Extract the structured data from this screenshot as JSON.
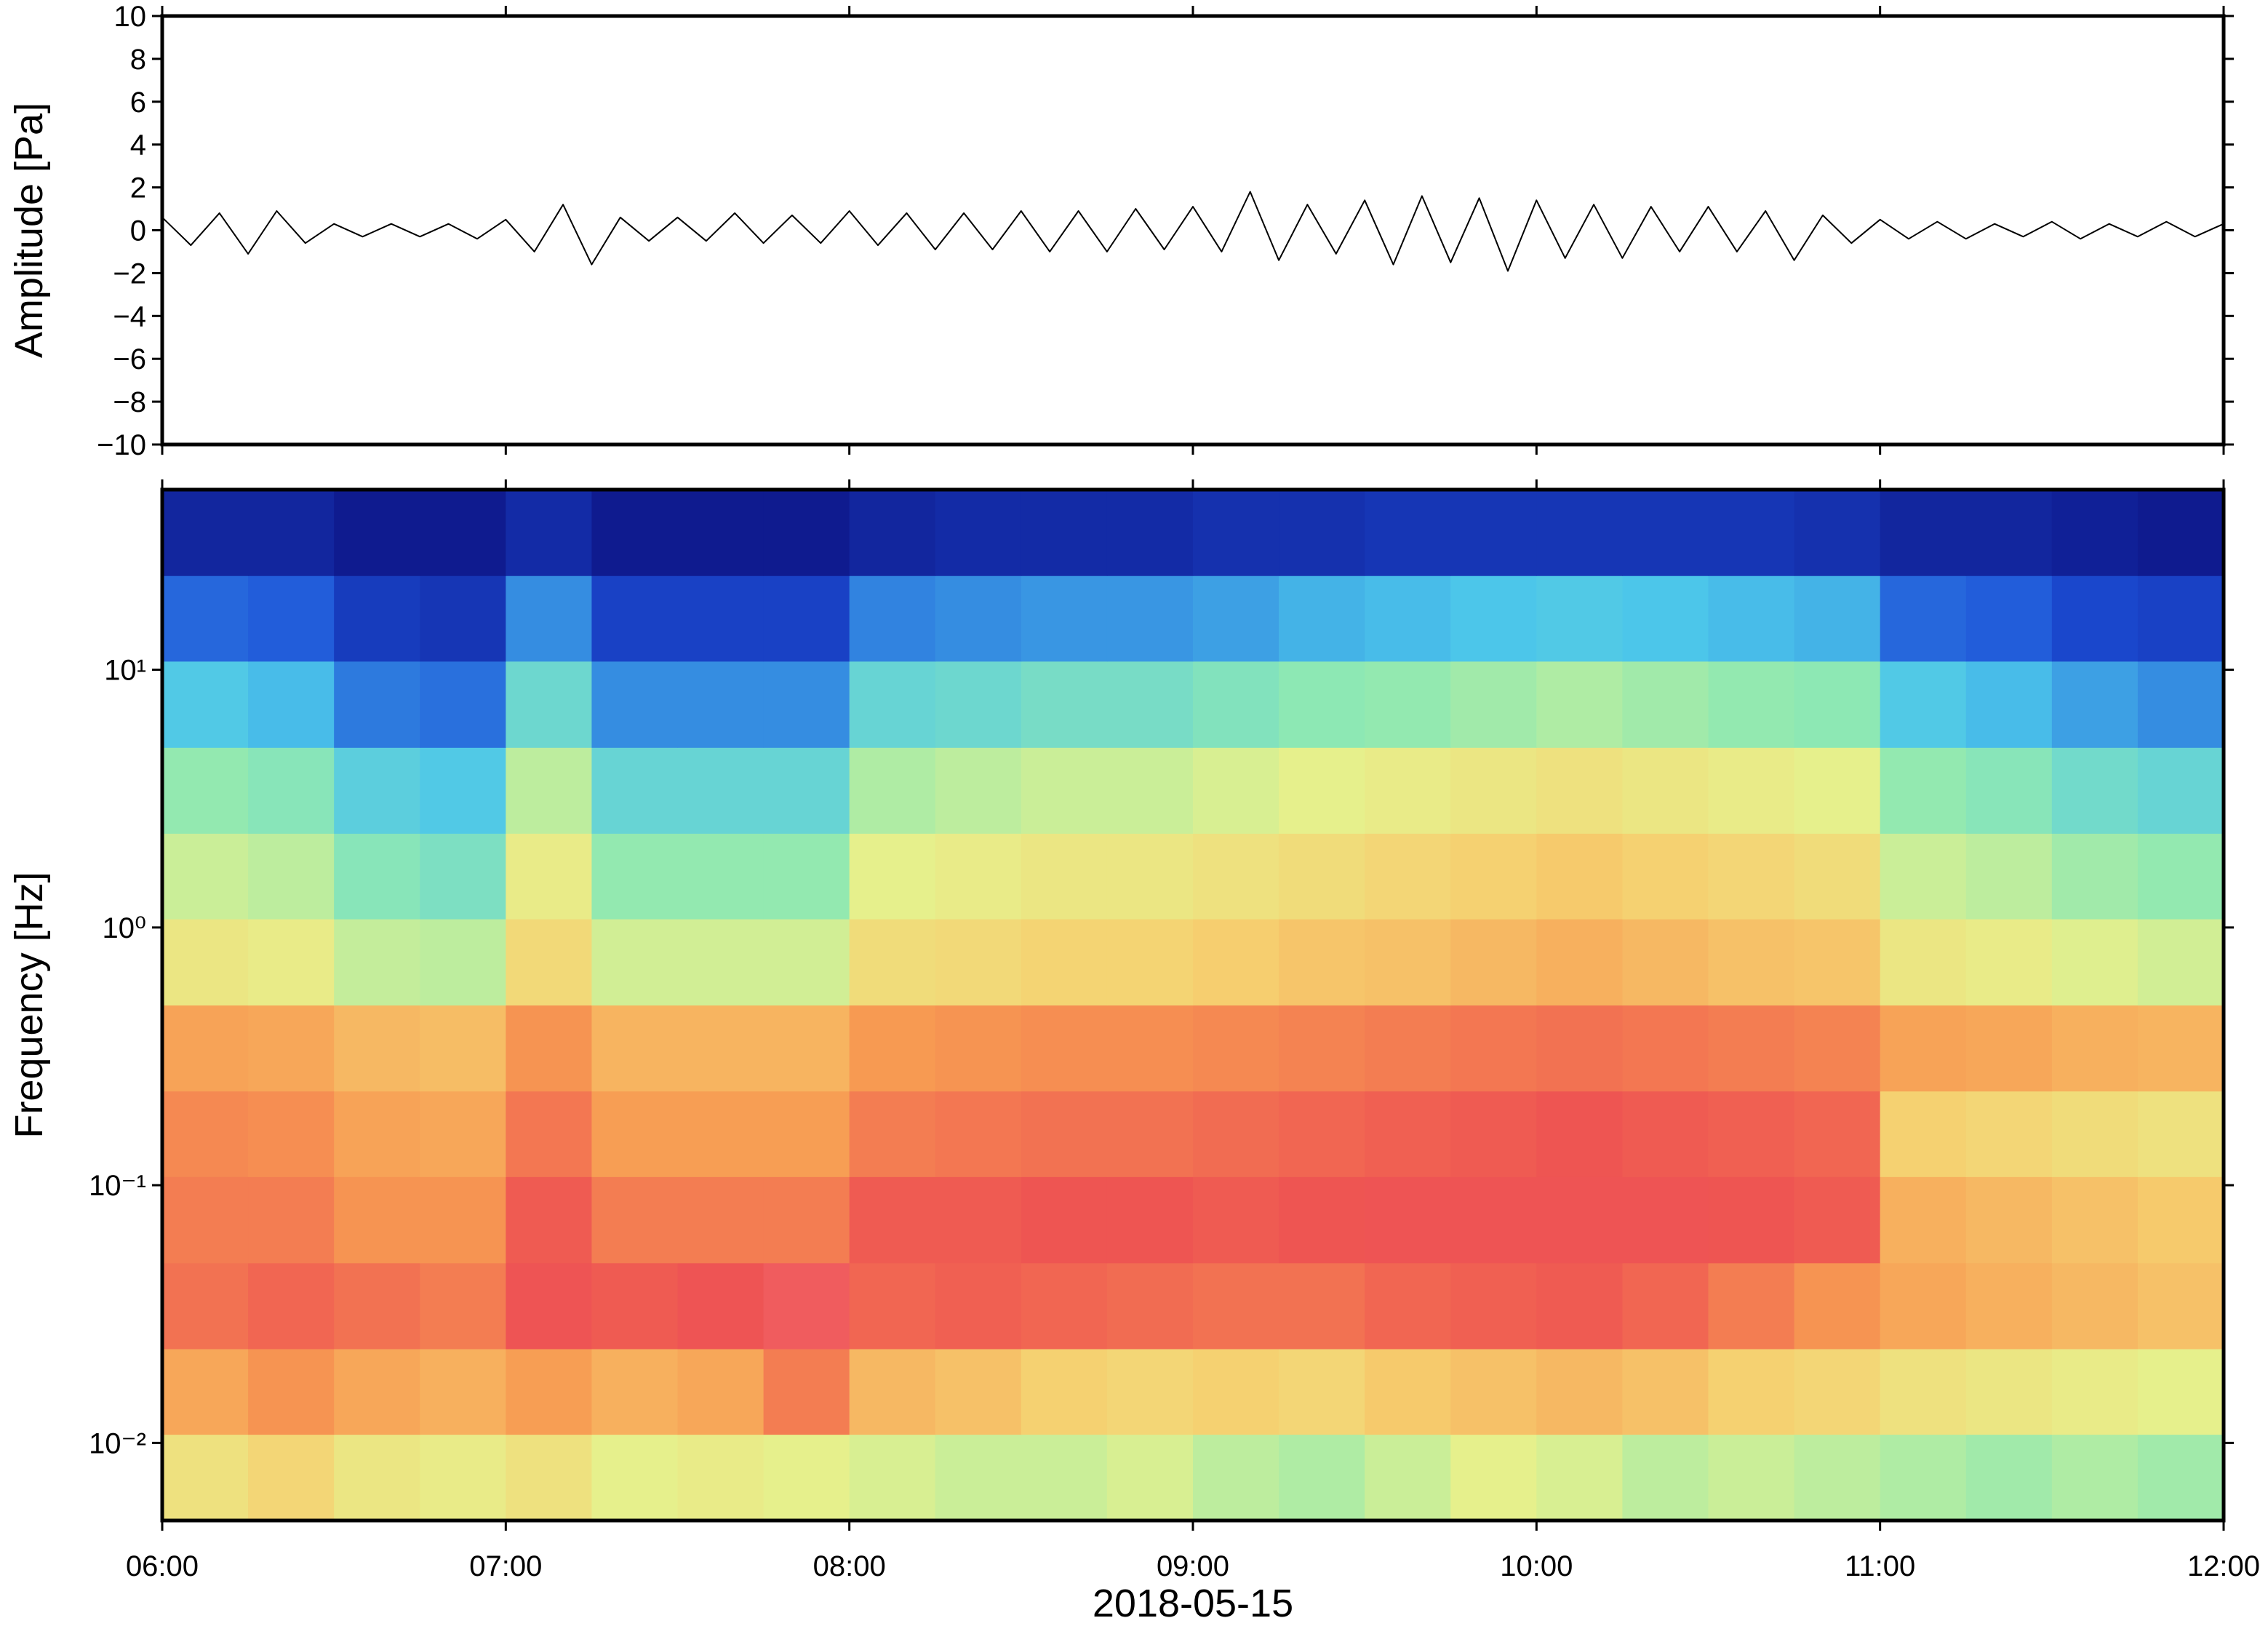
{
  "chart_data": [
    {
      "type": "line",
      "ylabel": "Amplitude [Pa]",
      "color": "#000000",
      "x": [
        "06:00",
        "06:05",
        "06:10",
        "06:15",
        "06:20",
        "06:25",
        "06:30",
        "06:35",
        "06:40",
        "06:45",
        "06:50",
        "06:55",
        "07:00",
        "07:05",
        "07:10",
        "07:15",
        "07:20",
        "07:25",
        "07:30",
        "07:35",
        "07:40",
        "07:45",
        "07:50",
        "07:55",
        "08:00",
        "08:05",
        "08:10",
        "08:15",
        "08:20",
        "08:25",
        "08:30",
        "08:35",
        "08:40",
        "08:45",
        "08:50",
        "08:55",
        "09:00",
        "09:05",
        "09:10",
        "09:15",
        "09:20",
        "09:25",
        "09:30",
        "09:35",
        "09:40",
        "09:45",
        "09:50",
        "09:55",
        "10:00",
        "10:05",
        "10:10",
        "10:15",
        "10:20",
        "10:25",
        "10:30",
        "10:35",
        "10:40",
        "10:45",
        "10:50",
        "10:55",
        "11:00",
        "11:05",
        "11:10",
        "11:15",
        "11:20",
        "11:25",
        "11:30",
        "11:35",
        "11:40",
        "11:45",
        "11:50",
        "11:55",
        "12:00"
      ],
      "values": [
        0.6,
        -0.7,
        0.8,
        -1.1,
        0.9,
        -0.6,
        0.3,
        -0.3,
        0.3,
        -0.3,
        0.3,
        -0.4,
        0.5,
        -1.0,
        1.2,
        -1.6,
        0.6,
        -0.5,
        0.6,
        -0.5,
        0.8,
        -0.6,
        0.7,
        -0.6,
        0.9,
        -0.7,
        0.8,
        -0.9,
        0.8,
        -0.9,
        0.9,
        -1.0,
        0.9,
        -1.0,
        1.0,
        -0.9,
        1.1,
        -1.0,
        1.8,
        -1.4,
        1.2,
        -1.1,
        1.4,
        -1.6,
        1.6,
        -1.5,
        1.5,
        -1.9,
        1.4,
        -1.3,
        1.2,
        -1.3,
        1.1,
        -1.0,
        1.1,
        -1.0,
        0.9,
        -1.4,
        0.7,
        -0.6,
        0.5,
        -0.4,
        0.4,
        -0.4,
        0.3,
        -0.3,
        0.4,
        -0.4,
        0.3,
        -0.3,
        0.4,
        -0.3,
        0.3
      ],
      "xlim": [
        "06:00",
        "12:00"
      ],
      "xticks": [
        "06:00",
        "07:00",
        "08:00",
        "09:00",
        "10:00",
        "11:00",
        "12:00"
      ],
      "ylim": [
        -10,
        10
      ],
      "yticks": [
        {
          "value": -10,
          "label": "−10"
        },
        {
          "value": -8,
          "label": "−8"
        },
        {
          "value": -6,
          "label": "−6"
        },
        {
          "value": -4,
          "label": "−4"
        },
        {
          "value": -2,
          "label": "−2"
        },
        0,
        2,
        4,
        6,
        8,
        10
      ]
    },
    {
      "type": "heatmap",
      "ylabel": "Frequency [Hz]",
      "xlabel": "2018-05-15",
      "yscale": "log",
      "colormap": [
        "#0b0a78",
        "#1c4fd8",
        "#4cc6ea",
        "#90e9b2",
        "#e6f08c",
        "#f6d070",
        "#f79a52",
        "#ee5252",
        "#f7838f"
      ],
      "clim": [
        0,
        1
      ],
      "x_bins": [
        "06:00",
        "06:15",
        "06:30",
        "06:45",
        "07:00",
        "07:15",
        "07:30",
        "07:45",
        "08:00",
        "08:15",
        "08:30",
        "08:45",
        "09:00",
        "09:15",
        "09:30",
        "09:45",
        "10:00",
        "10:15",
        "10:30",
        "10:45",
        "11:00",
        "11:15",
        "11:30",
        "11:45",
        "12:00"
      ],
      "y_bins": [
        0.005,
        0.0108,
        0.0232,
        0.05,
        0.108,
        0.232,
        0.5,
        1.08,
        2.32,
        5,
        10.8,
        23.2,
        50
      ],
      "z": [
        [
          0.56,
          0.6,
          0.54,
          0.52,
          0.56,
          0.5,
          0.52,
          0.5,
          0.48,
          0.46,
          0.46,
          0.48,
          0.44,
          0.42,
          0.46,
          0.5,
          0.48,
          0.44,
          0.46,
          0.44,
          0.42,
          0.4,
          0.42,
          0.4
        ],
        [
          0.72,
          0.76,
          0.72,
          0.7,
          0.74,
          0.7,
          0.72,
          0.8,
          0.68,
          0.66,
          0.62,
          0.6,
          0.62,
          0.6,
          0.64,
          0.66,
          0.68,
          0.66,
          0.62,
          0.6,
          0.56,
          0.54,
          0.52,
          0.5
        ],
        [
          0.82,
          0.84,
          0.82,
          0.8,
          0.88,
          0.86,
          0.88,
          0.9,
          0.84,
          0.85,
          0.84,
          0.83,
          0.82,
          0.82,
          0.84,
          0.85,
          0.86,
          0.84,
          0.8,
          0.76,
          0.72,
          0.7,
          0.68,
          0.66
        ],
        [
          0.8,
          0.8,
          0.76,
          0.76,
          0.86,
          0.8,
          0.8,
          0.8,
          0.86,
          0.86,
          0.87,
          0.87,
          0.86,
          0.87,
          0.88,
          0.88,
          0.88,
          0.88,
          0.87,
          0.86,
          0.7,
          0.68,
          0.66,
          0.64
        ],
        [
          0.78,
          0.77,
          0.73,
          0.72,
          0.81,
          0.74,
          0.74,
          0.74,
          0.8,
          0.81,
          0.82,
          0.82,
          0.83,
          0.84,
          0.85,
          0.86,
          0.87,
          0.86,
          0.85,
          0.84,
          0.62,
          0.6,
          0.58,
          0.56
        ],
        [
          0.73,
          0.72,
          0.68,
          0.67,
          0.76,
          0.69,
          0.69,
          0.69,
          0.75,
          0.76,
          0.77,
          0.77,
          0.78,
          0.79,
          0.8,
          0.81,
          0.82,
          0.81,
          0.8,
          0.79,
          0.73,
          0.72,
          0.7,
          0.69
        ],
        [
          0.54,
          0.52,
          0.45,
          0.44,
          0.59,
          0.47,
          0.47,
          0.47,
          0.58,
          0.59,
          0.61,
          0.61,
          0.63,
          0.65,
          0.66,
          0.68,
          0.7,
          0.68,
          0.66,
          0.65,
          0.54,
          0.52,
          0.49,
          0.47
        ],
        [
          0.46,
          0.44,
          0.36,
          0.34,
          0.52,
          0.38,
          0.38,
          0.38,
          0.5,
          0.52,
          0.54,
          0.54,
          0.56,
          0.58,
          0.6,
          0.62,
          0.64,
          0.62,
          0.6,
          0.58,
          0.46,
          0.44,
          0.4,
          0.38
        ],
        [
          0.38,
          0.36,
          0.28,
          0.26,
          0.44,
          0.3,
          0.3,
          0.3,
          0.42,
          0.44,
          0.46,
          0.46,
          0.48,
          0.5,
          0.52,
          0.54,
          0.56,
          0.54,
          0.52,
          0.5,
          0.38,
          0.36,
          0.32,
          0.3
        ],
        [
          0.26,
          0.24,
          0.17,
          0.16,
          0.31,
          0.19,
          0.19,
          0.19,
          0.3,
          0.31,
          0.33,
          0.33,
          0.35,
          0.37,
          0.38,
          0.4,
          0.42,
          0.4,
          0.38,
          0.37,
          0.26,
          0.24,
          0.21,
          0.19
        ],
        [
          0.15,
          0.14,
          0.09,
          0.08,
          0.19,
          0.1,
          0.1,
          0.1,
          0.18,
          0.19,
          0.2,
          0.2,
          0.21,
          0.23,
          0.24,
          0.25,
          0.26,
          0.25,
          0.24,
          0.23,
          0.15,
          0.14,
          0.11,
          0.1
        ],
        [
          0.05,
          0.05,
          0.03,
          0.03,
          0.06,
          0.03,
          0.03,
          0.03,
          0.05,
          0.06,
          0.06,
          0.06,
          0.07,
          0.07,
          0.08,
          0.08,
          0.08,
          0.08,
          0.08,
          0.07,
          0.05,
          0.05,
          0.04,
          0.03
        ]
      ],
      "xlim": [
        "06:00",
        "12:00"
      ],
      "xticks": [
        "06:00",
        "07:00",
        "08:00",
        "09:00",
        "10:00",
        "11:00",
        "12:00"
      ],
      "ylim": [
        0.005,
        50
      ],
      "yticks": [
        {
          "value": 0.01,
          "label": "10⁻²"
        },
        {
          "value": 0.1,
          "label": "10⁻¹"
        },
        {
          "value": 1,
          "label": "10⁰"
        },
        {
          "value": 10,
          "label": "10¹"
        }
      ]
    }
  ]
}
